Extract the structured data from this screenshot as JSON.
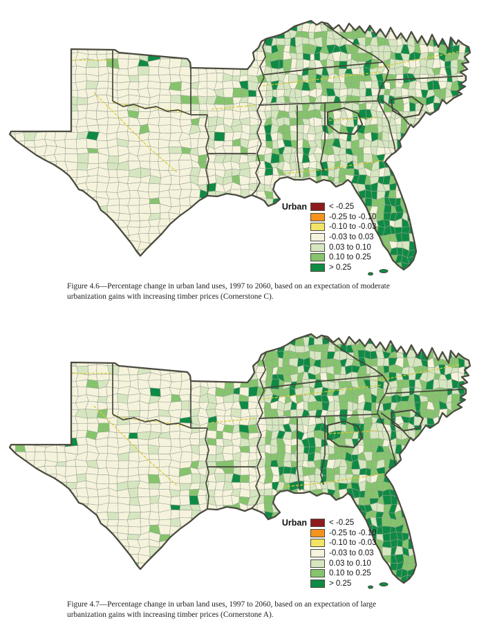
{
  "document": {
    "type": "report-page",
    "background": "#ffffff"
  },
  "colors": {
    "map_classes": {
      "maroon": "#8e1b1e",
      "orange": "#f6921e",
      "yellow": "#f2e566",
      "cream": "#f5f3dc",
      "pale_green": "#d6e6c0",
      "mid_green": "#85c46c",
      "dark_green": "#0f8a44"
    },
    "county_border": "#9aa296",
    "state_border": "#45453b",
    "survey_unit_border": "#d8ca39",
    "map_outline": "#4b4b41",
    "water": "#ffffff"
  },
  "figures": [
    {
      "number": "Figure 4.6",
      "caption": "Figure 4.6—Percentage change in urban land uses, 1997 to 2060, based on an expectation of moderate urbanization gains with increasing timber prices (Cornerstone C).",
      "legend": {
        "title": "Urban",
        "classes": [
          {
            "label": "< -0.25",
            "color": "#8e1b1e"
          },
          {
            "label": "-0.25 to -0.10",
            "color": "#f6921e"
          },
          {
            "label": "-0.10 to -0.03",
            "color": "#f2e566"
          },
          {
            "label": "-0.03 to 0.03",
            "color": "#f5f3dc"
          },
          {
            "label": "0.03 to 0.10",
            "color": "#d6e6c0"
          },
          {
            "label": "0.10 to 0.25",
            "color": "#85c46c"
          },
          {
            "label": "> 0.25",
            "color": "#0f8a44"
          }
        ]
      }
    },
    {
      "number": "Figure 4.7",
      "caption": "Figure 4.7—Percentage change in urban land uses, 1997 to 2060, based on an expectation of large urbanization gains with increasing timber prices (Cornerstone A).",
      "legend": {
        "title": "Urban",
        "classes": [
          {
            "label": "< -0.25",
            "color": "#8e1b1e"
          },
          {
            "label": "-0.25 to -0.10",
            "color": "#f6921e"
          },
          {
            "label": "-0.10 to -0.03",
            "color": "#f2e566"
          },
          {
            "label": "-0.03 to 0.03",
            "color": "#f5f3dc"
          },
          {
            "label": "0.03 to 0.10",
            "color": "#d6e6c0"
          },
          {
            "label": "0.10 to 0.25",
            "color": "#85c46c"
          },
          {
            "label": "> 0.25",
            "color": "#0f8a44"
          }
        ]
      }
    }
  ]
}
